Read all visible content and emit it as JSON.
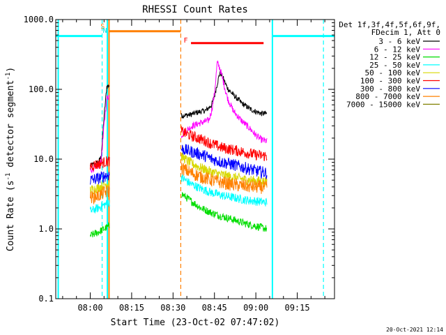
{
  "chart_data": {
    "type": "line",
    "title": "RHESSI Count Rates",
    "xlabel": "Start Time (23-Oct-02 07:47:02)",
    "ylabel_main": "Count Rate (s",
    "ylabel_exp1": "-1",
    "ylabel_mid": " detector segment",
    "ylabel_exp2": "-1",
    "ylabel_close": ")",
    "y_scale": "log",
    "ylim": [
      0.1,
      1000
    ],
    "xlim_minutes": [
      -12.5,
      88.5
    ],
    "x_axis_unit": "minutes after 08:00",
    "x_ticks": [
      {
        "t": 0,
        "label": "08:00"
      },
      {
        "t": 15,
        "label": "08:15"
      },
      {
        "t": 30,
        "label": "08:30"
      },
      {
        "t": 45,
        "label": "08:45"
      },
      {
        "t": 60,
        "label": "09:00"
      },
      {
        "t": 75,
        "label": "09:15"
      }
    ],
    "y_ticks": [
      {
        "v": 1000,
        "label": "1000.0"
      },
      {
        "v": 100,
        "label": "100.0"
      },
      {
        "v": 10,
        "label": "10.0"
      },
      {
        "v": 1,
        "label": "1.0"
      },
      {
        "v": 0.1,
        "label": "0.1"
      }
    ],
    "legend_header": [
      "Det 1f,3f,4f,5f,6f,9f,",
      "FDecim 1, Att 0"
    ],
    "legend_position": "right of plot",
    "grid": false,
    "series": [
      {
        "name": "3 - 6 keV",
        "color": "#000000",
        "segments": [
          {
            "t": [
              0,
              3,
              4,
              5,
              6,
              7
            ],
            "v": [
              8.0,
              9.0,
              11.0,
              40.0,
              110.0,
              115.0
            ]
          },
          {
            "t": [
              33,
              36,
              39,
              42,
              44,
              45,
              46,
              47,
              48,
              49,
              50,
              52,
              55,
              58,
              60,
              62,
              64
            ],
            "v": [
              42.0,
              43.0,
              47.0,
              50.0,
              60.0,
              80.0,
              120.0,
              175.0,
              150.0,
              120.0,
              100.0,
              82.0,
              63.0,
              52.0,
              48.0,
              45.0,
              45.0
            ]
          }
        ]
      },
      {
        "name": "6 - 12 keV",
        "color": "#ff00ff",
        "segments": [
          {
            "t": [
              0,
              3,
              4,
              5,
              6,
              7
            ],
            "v": [
              7.0,
              8.0,
              10.0,
              30.0,
              75.0,
              80.0
            ]
          },
          {
            "t": [
              33,
              35,
              37,
              39,
              41,
              43,
              44,
              45,
              46,
              47,
              48,
              49,
              50,
              52,
              55,
              58,
              60,
              62,
              64
            ],
            "v": [
              22.0,
              26.0,
              30.0,
              32.0,
              34.0,
              36.0,
              50.0,
              85.0,
              240.0,
              200.0,
              140.0,
              95.0,
              70.0,
              48.0,
              35.0,
              27.0,
              22.0,
              19.0,
              18.0
            ]
          }
        ]
      },
      {
        "name": "12 - 25 keV",
        "color": "#00dd00",
        "segments": [
          {
            "t": [
              0,
              3,
              5,
              7
            ],
            "v": [
              0.8,
              0.9,
              1.0,
              1.1
            ]
          },
          {
            "t": [
              33,
              36,
              40,
              44,
              48,
              52,
              56,
              60,
              64
            ],
            "v": [
              3.2,
              2.6,
              2.0,
              1.7,
              1.5,
              1.35,
              1.2,
              1.1,
              1.0
            ]
          }
        ]
      },
      {
        "name": "25 - 50 keV",
        "color": "#00ffff",
        "segments": [
          {
            "t": [
              0,
              3,
              5,
              7
            ],
            "v": [
              1.8,
              2.0,
              2.2,
              2.4
            ]
          },
          {
            "t": [
              33,
              36,
              40,
              44,
              48,
              52,
              56,
              60,
              64
            ],
            "v": [
              5.5,
              4.5,
              3.8,
              3.3,
              3.0,
              2.8,
              2.6,
              2.5,
              2.4
            ]
          }
        ]
      },
      {
        "name": "50 - 100 keV",
        "color": "#d8d800",
        "segments": [
          {
            "t": [
              0,
              3,
              5,
              7
            ],
            "v": [
              3.6,
              3.9,
              4.3,
              4.6
            ]
          },
          {
            "t": [
              33,
              36,
              40,
              44,
              48,
              52,
              56,
              60,
              64
            ],
            "v": [
              11.0,
              9.0,
              7.5,
              6.5,
              5.9,
              5.5,
              5.1,
              4.9,
              4.7
            ]
          }
        ]
      },
      {
        "name": "100 - 300 keV",
        "color": "#ff0000",
        "segments": [
          {
            "t": [
              0,
              3,
              5,
              7
            ],
            "v": [
              8.0,
              8.5,
              9.0,
              9.5
            ]
          },
          {
            "t": [
              33,
              36,
              39,
              42,
              44,
              46,
              48,
              52,
              56,
              60,
              64
            ],
            "v": [
              25.0,
              22.0,
              20.0,
              18.0,
              16.5,
              15.5,
              14.5,
              13.5,
              12.5,
              11.5,
              11.0
            ]
          }
        ]
      },
      {
        "name": "300 - 800 keV",
        "color": "#0000ff",
        "segments": [
          {
            "t": [
              0,
              3,
              5,
              7
            ],
            "v": [
              5.0,
              5.3,
              5.7,
              6.0
            ]
          },
          {
            "t": [
              33,
              36,
              39,
              42,
              44,
              48,
              52,
              56,
              60,
              64
            ],
            "v": [
              14.0,
              13.0,
              12.0,
              11.0,
              10.0,
              9.0,
              8.3,
              7.5,
              6.8,
              6.3
            ]
          }
        ]
      },
      {
        "name": "800 - 7000 keV",
        "color": "#ff8000",
        "segments": [
          {
            "t": [
              0,
              3,
              5,
              7
            ],
            "v": [
              2.8,
              3.0,
              3.3,
              3.5
            ]
          },
          {
            "t": [
              33,
              36,
              40,
              44,
              48,
              52,
              56,
              60,
              64
            ],
            "v": [
              7.5,
              6.5,
              5.6,
              5.0,
              4.6,
              4.3,
              4.1,
              4.0,
              3.9
            ]
          }
        ]
      },
      {
        "name": "7000 - 15000 keV",
        "color": "#808000",
        "segments": []
      }
    ],
    "annotations": [
      {
        "label": "S",
        "t": 4.5,
        "color": "#ff8000"
      },
      {
        "label": "N",
        "t": 5.3,
        "color": "#00dddd"
      },
      {
        "label": "F",
        "t": 34.6,
        "color": "#ff0000"
      }
    ],
    "intervals": [
      {
        "kind": "attenuator-state",
        "t_start": -12.5,
        "t_end": 4.3,
        "level": 580,
        "color": "#00ffff"
      },
      {
        "kind": "attenuator-state",
        "t_start": 66.0,
        "t_end": 88.5,
        "level": 580,
        "color": "#00ffff"
      },
      {
        "kind": "SAA",
        "t_start": 6.8,
        "t_end": 32.8,
        "level": 680,
        "color": "#ff8000"
      },
      {
        "kind": "flare",
        "t_start": 36.5,
        "t_end": 62.8,
        "level": 460,
        "color": "#ff0000"
      }
    ],
    "vlines": [
      {
        "t": -11.6,
        "style": "solid",
        "color": "#00ffff"
      },
      {
        "t": 4.3,
        "style": "dashed",
        "color": "#00ffff"
      },
      {
        "t": 6.2,
        "style": "solid",
        "color": "#00ffff"
      },
      {
        "t": 6.8,
        "style": "solid",
        "color": "#ff8000"
      },
      {
        "t": 32.8,
        "style": "dashed",
        "color": "#ff8000"
      },
      {
        "t": 66.0,
        "style": "solid",
        "color": "#00ffff"
      },
      {
        "t": 84.5,
        "style": "dashed",
        "color": "#00ffff"
      }
    ]
  },
  "footer": {
    "timestamp": "20-Oct-2021 12:14"
  }
}
